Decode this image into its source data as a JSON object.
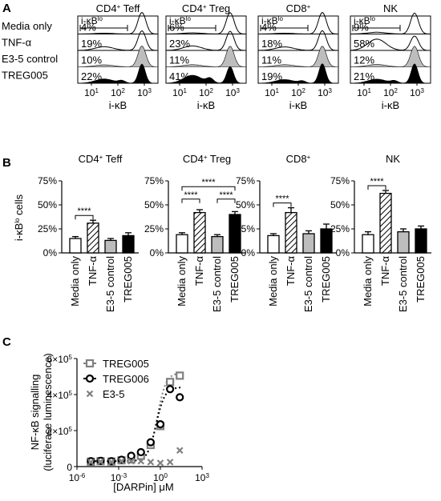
{
  "panel_letters": [
    "A",
    "B",
    "C"
  ],
  "histogram_panels": {
    "row_labels": [
      "Media only",
      "TNF-α",
      "E3-5 control",
      "TREG005"
    ],
    "gate_label": "i-κB",
    "gate_label_sup": "lo",
    "x_ticks": [
      "10",
      "10",
      "10"
    ],
    "x_tick_exponents": [
      "1",
      "2",
      "3"
    ],
    "xlabel": "i-κB",
    "panels": [
      {
        "title": "CD4",
        "title_sup": "+",
        "title_suffix": " Teff",
        "percents": [
          "4%",
          "19%",
          "10%",
          "22%"
        ]
      },
      {
        "title": "CD4",
        "title_sup": "+",
        "title_suffix": " Treg",
        "percents": [
          "6%",
          "23%",
          "11%",
          "41%"
        ]
      },
      {
        "title": "CD8",
        "title_sup": "+",
        "title_suffix": "",
        "percents": [
          "4%",
          "18%",
          "11%",
          "19%"
        ]
      },
      {
        "title": "NK",
        "title_sup": "",
        "title_suffix": "",
        "percents": [
          "9%",
          "58%",
          "12%",
          "21%"
        ]
      }
    ]
  },
  "colors": {
    "black": "#000000",
    "grey": "#bdbdbd",
    "marker": "#808080"
  },
  "chart_data": [
    {
      "type": "bar",
      "title": "CD4+ Teff",
      "ylabel": "i-κBlo cells",
      "ylim": [
        0,
        75
      ],
      "yticks": [
        "0%",
        "25%",
        "50%",
        "75%"
      ],
      "categories": [
        "Media only",
        "TNF-α",
        "E3-5 control",
        "TREG005"
      ],
      "values": [
        15,
        31,
        13,
        18
      ],
      "errors": [
        2,
        3,
        2,
        3
      ],
      "significance": [
        {
          "from": "Media only",
          "to": "TNF-α",
          "label": "****"
        }
      ]
    },
    {
      "type": "bar",
      "title": "CD4+ Treg",
      "ylim": [
        0,
        75
      ],
      "yticks": [
        "0%",
        "25%",
        "50%",
        "75%"
      ],
      "categories": [
        "Media only",
        "TNF-α",
        "E3-5 control",
        "TREG005"
      ],
      "values": [
        19,
        42,
        17,
        40
      ],
      "errors": [
        2,
        3,
        2,
        3
      ],
      "significance": [
        {
          "from": "Media only",
          "to": "TNF-α",
          "label": "****"
        },
        {
          "from": "E3-5 control",
          "to": "TREG005",
          "label": "****"
        },
        {
          "from": "Media only",
          "to": "TREG005",
          "label": "****"
        }
      ]
    },
    {
      "type": "bar",
      "title": "CD8+",
      "ylim": [
        0,
        75
      ],
      "yticks": [
        "0%",
        "25%",
        "50%",
        "75%"
      ],
      "categories": [
        "Media only",
        "TNF-α",
        "E3-5 control",
        "TREG005"
      ],
      "values": [
        18,
        42,
        20,
        25
      ],
      "errors": [
        2,
        5,
        3,
        5
      ],
      "significance": [
        {
          "from": "Media only",
          "to": "TNF-α",
          "label": "****"
        }
      ]
    },
    {
      "type": "bar",
      "title": "NK",
      "ylim": [
        0,
        75
      ],
      "yticks": [
        "0%",
        "25%",
        "50%",
        "75%"
      ],
      "categories": [
        "Media only",
        "TNF-α",
        "E3-5 control",
        "TREG005"
      ],
      "values": [
        19,
        62,
        22,
        25
      ],
      "errors": [
        3,
        3,
        3,
        3
      ],
      "significance": [
        {
          "from": "Media only",
          "to": "TNF-α",
          "label": "****"
        }
      ]
    },
    {
      "type": "scatter",
      "ylabel": "NF-κB signalling",
      "ylabel2": "(luciferase luminescence)",
      "xlabel": "[DARPin] μM",
      "x_scale": "log",
      "xlim": [
        1e-06,
        1000
      ],
      "xticks": [
        "10",
        "10",
        "10",
        "10"
      ],
      "xtick_exponents": [
        "-6",
        "-3",
        "0",
        "3"
      ],
      "ylim": [
        0,
        500000
      ],
      "yticks": [
        "0",
        "2×10",
        "4×10"
      ],
      "ytick_exponents": [
        "",
        "5",
        "5"
      ],
      "ytick_top": "6×10",
      "ytick_top_exponent": "5",
      "legend_position": "top-left",
      "series": [
        {
          "name": "TREG005",
          "marker": "square",
          "x": [
            1e-05,
            5e-05,
            0.0003,
            0.0016,
            0.008,
            0.04,
            0.2,
            1,
            5,
            25
          ],
          "y": [
            27000,
            30000,
            28000,
            35000,
            40000,
            60000,
            120000,
            225000,
            470000,
            505000
          ]
        },
        {
          "name": "TREG006",
          "marker": "circle",
          "x": [
            1e-05,
            5e-05,
            0.0003,
            0.0016,
            0.008,
            0.04,
            0.2,
            1,
            5,
            25
          ],
          "y": [
            30000,
            32000,
            30000,
            38000,
            60000,
            80000,
            135000,
            235000,
            430000,
            385000
          ]
        },
        {
          "name": "E3-5",
          "marker": "x",
          "x": [
            1e-05,
            5e-05,
            0.0003,
            0.0016,
            0.008,
            0.04,
            0.2,
            1,
            5,
            25
          ],
          "y": [
            25000,
            27000,
            25000,
            30000,
            30000,
            30000,
            25000,
            20000,
            25000,
            90000
          ]
        }
      ]
    }
  ]
}
